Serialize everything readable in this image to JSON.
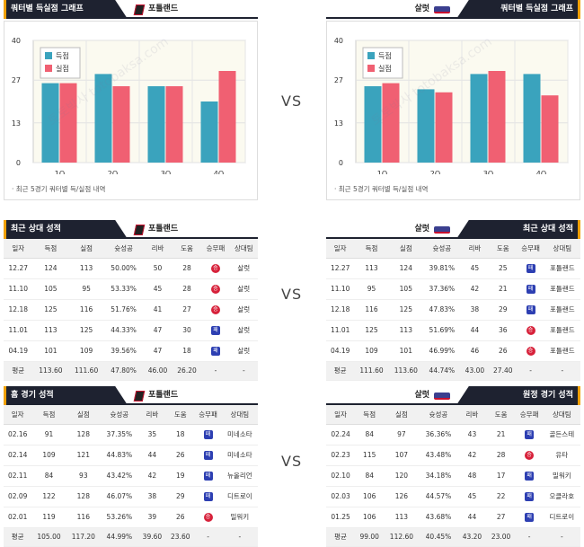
{
  "home_team": "포틀랜드",
  "away_team": "살럿",
  "vs": "VS",
  "quarter_chart": {
    "title": "쿼터별 득실점 그래프",
    "note": "· 최근 5경기 쿼터별 득/실점 내역",
    "legend": [
      "득점",
      "실점"
    ]
  },
  "chart_data": [
    {
      "type": "bar",
      "categories": [
        "1Q",
        "2Q",
        "3Q",
        "4Q"
      ],
      "series": [
        {
          "name": "득점",
          "values": [
            26,
            29,
            25,
            20
          ]
        },
        {
          "name": "실점",
          "values": [
            26,
            25,
            25,
            30
          ]
        }
      ],
      "yticks": [
        0,
        13,
        27,
        40
      ],
      "ylim": [
        0,
        40
      ],
      "colors": [
        "#3aa3bd",
        "#f06072"
      ]
    },
    {
      "type": "bar",
      "categories": [
        "1Q",
        "2Q",
        "3Q",
        "4Q"
      ],
      "series": [
        {
          "name": "득점",
          "values": [
            25,
            24,
            29,
            29
          ]
        },
        {
          "name": "실점",
          "values": [
            26,
            23,
            30,
            22
          ]
        }
      ],
      "yticks": [
        0,
        13,
        27,
        40
      ],
      "ylim": [
        0,
        40
      ],
      "colors": [
        "#3aa3bd",
        "#f06072"
      ]
    }
  ],
  "h2h": {
    "title": "최근 상대 성적",
    "headers": [
      "일자",
      "득점",
      "실점",
      "슛성공",
      "리바",
      "도움",
      "승무패",
      "상대팀"
    ],
    "left": {
      "rows": [
        [
          "12.27",
          "124",
          "113",
          "50.00%",
          "50",
          "28",
          "L",
          "살럿"
        ],
        [
          "11.10",
          "105",
          "95",
          "53.33%",
          "45",
          "28",
          "L",
          "살럿"
        ],
        [
          "12.18",
          "125",
          "116",
          "51.76%",
          "41",
          "27",
          "L",
          "살럿"
        ],
        [
          "11.01",
          "113",
          "125",
          "44.33%",
          "47",
          "30",
          "W",
          "살럿"
        ],
        [
          "04.19",
          "101",
          "109",
          "39.56%",
          "47",
          "18",
          "W",
          "살럿"
        ]
      ],
      "avg": [
        "평균",
        "113.60",
        "111.60",
        "47.80%",
        "46.00",
        "26.20",
        "-",
        "-"
      ]
    },
    "right": {
      "rows": [
        [
          "12.27",
          "113",
          "124",
          "39.81%",
          "45",
          "25",
          "W",
          "포틀랜드"
        ],
        [
          "11.10",
          "95",
          "105",
          "37.36%",
          "42",
          "21",
          "W",
          "포틀랜드"
        ],
        [
          "12.18",
          "116",
          "125",
          "47.83%",
          "38",
          "29",
          "W",
          "포틀랜드"
        ],
        [
          "11.01",
          "125",
          "113",
          "51.69%",
          "44",
          "36",
          "L",
          "포틀랜드"
        ],
        [
          "04.19",
          "109",
          "101",
          "46.99%",
          "46",
          "26",
          "L",
          "포틀랜드"
        ]
      ],
      "avg": [
        "평균",
        "111.60",
        "113.60",
        "44.74%",
        "43.00",
        "27.40",
        "-",
        "-"
      ]
    }
  },
  "home_games": {
    "title": "홈 경기 성적",
    "rows": [
      [
        "02.16",
        "91",
        "128",
        "37.35%",
        "35",
        "18",
        "W",
        "미네소타"
      ],
      [
        "02.14",
        "109",
        "121",
        "44.83%",
        "44",
        "26",
        "W",
        "미네소타"
      ],
      [
        "02.11",
        "84",
        "93",
        "43.42%",
        "42",
        "19",
        "W",
        "뉴올리언"
      ],
      [
        "02.09",
        "122",
        "128",
        "46.07%",
        "38",
        "29",
        "W",
        "디트로이"
      ],
      [
        "02.01",
        "119",
        "116",
        "53.26%",
        "39",
        "26",
        "L",
        "밀워키"
      ]
    ],
    "avg": [
      "평균",
      "105.00",
      "117.20",
      "44.99%",
      "39.60",
      "23.60",
      "-",
      "-"
    ]
  },
  "away_games": {
    "title": "원정 경기 성적",
    "rows": [
      [
        "02.24",
        "84",
        "97",
        "36.36%",
        "43",
        "21",
        "W",
        "골든스테"
      ],
      [
        "02.23",
        "115",
        "107",
        "43.48%",
        "42",
        "28",
        "L",
        "유타"
      ],
      [
        "02.10",
        "84",
        "120",
        "34.18%",
        "48",
        "17",
        "W",
        "밀워키"
      ],
      [
        "02.03",
        "106",
        "126",
        "44.57%",
        "45",
        "22",
        "W",
        "오클라호"
      ],
      [
        "01.25",
        "106",
        "113",
        "43.68%",
        "44",
        "27",
        "W",
        "디트로이"
      ]
    ],
    "avg": [
      "평균",
      "99.00",
      "112.60",
      "40.45%",
      "43.20",
      "23.00",
      "-",
      "-"
    ]
  },
  "result_glyph": {
    "W": "패",
    "L": "승"
  },
  "watermark": "토토박사 totobaksa.com"
}
